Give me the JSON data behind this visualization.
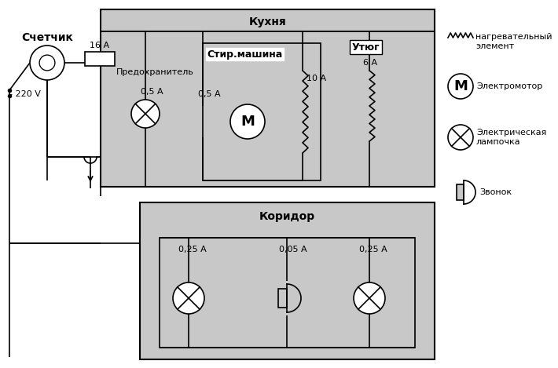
{
  "bg_color": "#c8c8c8",
  "white": "#ffffff",
  "black": "#000000",
  "kitchen_label": "Кухня",
  "corridor_label": "Коридор",
  "schetchik_label": "Счетчик",
  "predohranitel_label": "Предохранитель",
  "voltage_label": "- 220 V",
  "fuse_label": "16 А",
  "lamp_k_label": "0,5 А",
  "motor_label": "0,5 А",
  "heater_wash_label": "10 А",
  "heater_iron_label": "6 А",
  "stir_label": "Стир.машина",
  "iron_label": "Утюг",
  "lamp_c1_label": "0,25 А",
  "bell_label": "0,05 А",
  "lamp_c2_label": "0,25 А",
  "leg_heater": "нагревательный\nэлемент",
  "leg_motor": "Электромотор",
  "leg_lamp": "Электрическая\nлампочка",
  "leg_bell": "Звонок"
}
